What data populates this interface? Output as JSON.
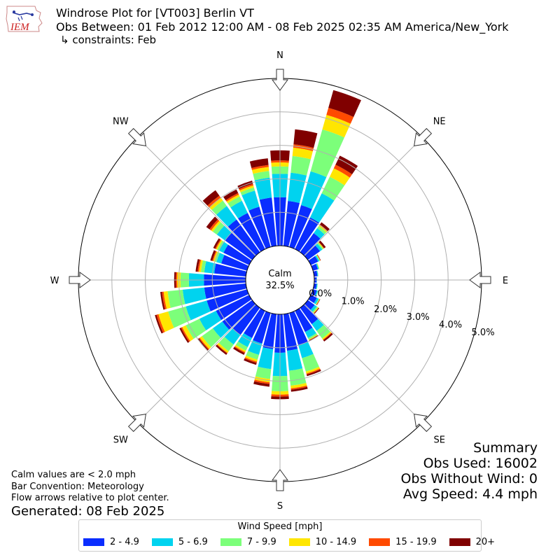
{
  "header": {
    "title_line1": "Windrose Plot for [VT003] Berlin  VT",
    "title_line2": "Obs Between: 01 Feb 2012 12:00 AM - 08 Feb 2025 02:35 AM America/New_York",
    "title_line3": "↳ constraints: Feb",
    "logo_text": "IEM"
  },
  "summary": {
    "title": "Summary",
    "obs_used": "Obs Used: 16002",
    "obs_without_wind": "Obs Without Wind: 0",
    "avg_speed": "Avg Speed: 4.4 mph"
  },
  "notes": {
    "calm_def": "Calm values are < 2.0 mph",
    "bar_convention": "Bar Convention: Meteorology",
    "flow_arrows": "Flow arrows relative to plot center.",
    "generated": "Generated: 08 Feb 2025"
  },
  "chart_data": {
    "type": "windrose",
    "calm_label": "Calm",
    "calm_value": "32.5%",
    "calm_percent": 32.5,
    "radial_unit": "%",
    "radial_ticks": [
      "0.0%",
      "1.0%",
      "2.0%",
      "3.0%",
      "4.0%",
      "5.0%"
    ],
    "rmax": 5.0,
    "directions": [
      "N",
      "NE",
      "E",
      "SE",
      "S",
      "SW",
      "W",
      "NW"
    ],
    "legend_title": "Wind Speed [mph]",
    "bins": [
      {
        "label": "2 - 4.9",
        "color": "#0a2dff"
      },
      {
        "label": "5 - 6.9",
        "color": "#00d3ef"
      },
      {
        "label": "7 - 9.9",
        "color": "#7cff7a"
      },
      {
        "label": "10 - 14.9",
        "color": "#ffe600"
      },
      {
        "label": "15 - 19.9",
        "color": "#ff4a00"
      },
      {
        "label": "20+",
        "color": "#800000"
      }
    ],
    "sectors": [
      {
        "dir": 0,
        "values": [
          1.45,
          0.7,
          0.22,
          0.12,
          0.06,
          0.3
        ]
      },
      {
        "dir": 10,
        "values": [
          1.35,
          0.85,
          0.5,
          0.25,
          0.1,
          0.45
        ]
      },
      {
        "dir": 20,
        "values": [
          1.3,
          1.05,
          1.3,
          0.45,
          0.22,
          0.55
        ]
      },
      {
        "dir": 30,
        "values": [
          1.05,
          0.8,
          0.55,
          0.28,
          0.12,
          0.3
        ]
      },
      {
        "dir": 40,
        "values": [
          0.7,
          0.18,
          0.08,
          0.04,
          0.02,
          0.08
        ]
      },
      {
        "dir": 50,
        "values": [
          0.45,
          0.08,
          0.04,
          0.02,
          0.01,
          0.06
        ]
      },
      {
        "dir": 60,
        "values": [
          0.24,
          0.04,
          0.02,
          0.01,
          0.01,
          0.01
        ]
      },
      {
        "dir": 70,
        "values": [
          0.15,
          0.03,
          0.01,
          0.01,
          0.0,
          0.0
        ]
      },
      {
        "dir": 80,
        "values": [
          0.1,
          0.02,
          0.01,
          0.0,
          0.0,
          0.0
        ]
      },
      {
        "dir": 90,
        "values": [
          0.07,
          0.01,
          0.0,
          0.0,
          0.0,
          0.0
        ]
      },
      {
        "dir": 100,
        "values": [
          0.08,
          0.02,
          0.01,
          0.0,
          0.0,
          0.0
        ]
      },
      {
        "dir": 110,
        "values": [
          0.12,
          0.03,
          0.01,
          0.0,
          0.0,
          0.0
        ]
      },
      {
        "dir": 120,
        "values": [
          0.2,
          0.06,
          0.02,
          0.01,
          0.01,
          0.01
        ]
      },
      {
        "dir": 130,
        "values": [
          0.25,
          0.08,
          0.04,
          0.02,
          0.01,
          0.02
        ]
      },
      {
        "dir": 140,
        "values": [
          0.6,
          0.25,
          0.28,
          0.04,
          0.02,
          0.05
        ]
      },
      {
        "dir": 150,
        "values": [
          0.7,
          0.2,
          0.05,
          0.02,
          0.01,
          0.02
        ]
      },
      {
        "dir": 160,
        "values": [
          1.0,
          0.4,
          0.42,
          0.06,
          0.03,
          0.05
        ]
      },
      {
        "dir": 170,
        "values": [
          1.1,
          0.6,
          0.45,
          0.08,
          0.04,
          0.06
        ]
      },
      {
        "dir": 180,
        "values": [
          1.15,
          0.7,
          0.45,
          0.1,
          0.06,
          0.08
        ]
      },
      {
        "dir": 190,
        "values": [
          1.05,
          0.6,
          0.3,
          0.1,
          0.05,
          0.08
        ]
      },
      {
        "dir": 200,
        "values": [
          0.95,
          0.35,
          0.15,
          0.06,
          0.04,
          0.06
        ]
      },
      {
        "dir": 210,
        "values": [
          0.9,
          0.3,
          0.12,
          0.05,
          0.03,
          0.06
        ]
      },
      {
        "dir": 220,
        "values": [
          1.0,
          0.35,
          0.25,
          0.06,
          0.02,
          0.05
        ]
      },
      {
        "dir": 230,
        "values": [
          1.1,
          0.35,
          0.4,
          0.08,
          0.03,
          0.05
        ]
      },
      {
        "dir": 240,
        "values": [
          1.1,
          0.55,
          0.45,
          0.12,
          0.04,
          0.05
        ]
      },
      {
        "dir": 250,
        "values": [
          1.25,
          0.65,
          0.55,
          0.3,
          0.06,
          0.05
        ]
      },
      {
        "dir": 260,
        "values": [
          1.25,
          0.65,
          0.45,
          0.12,
          0.05,
          0.05
        ]
      },
      {
        "dir": 270,
        "values": [
          1.25,
          0.45,
          0.25,
          0.1,
          0.04,
          0.05
        ]
      },
      {
        "dir": 280,
        "values": [
          0.95,
          0.3,
          0.1,
          0.06,
          0.04,
          0.06
        ]
      },
      {
        "dir": 290,
        "values": [
          0.8,
          0.15,
          0.06,
          0.04,
          0.03,
          0.06
        ]
      },
      {
        "dir": 300,
        "values": [
          0.85,
          0.15,
          0.06,
          0.04,
          0.03,
          0.06
        ]
      },
      {
        "dir": 310,
        "values": [
          1.0,
          0.3,
          0.15,
          0.06,
          0.06,
          0.12
        ]
      },
      {
        "dir": 320,
        "values": [
          1.2,
          0.5,
          0.2,
          0.1,
          0.08,
          0.2
        ]
      },
      {
        "dir": 330,
        "values": [
          1.2,
          0.4,
          0.15,
          0.06,
          0.05,
          0.12
        ]
      },
      {
        "dir": 340,
        "values": [
          1.25,
          0.5,
          0.1,
          0.06,
          0.05,
          0.1
        ]
      },
      {
        "dir": 350,
        "values": [
          1.45,
          0.6,
          0.2,
          0.12,
          0.06,
          0.2
        ]
      }
    ]
  }
}
